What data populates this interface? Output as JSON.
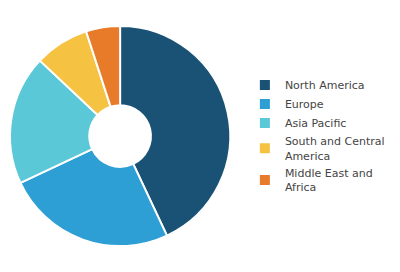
{
  "chart_data": {
    "type": "donut",
    "categories": [
      "North America",
      "Europe",
      "Asia Pacific",
      "South and Central\nAmerica",
      "Middle East and\nAfrica"
    ],
    "values": [
      43,
      25,
      19,
      8,
      5
    ],
    "colors": [
      "#1a5276",
      "#2e9fd4",
      "#5bc8d8",
      "#f5c242",
      "#e87b2a"
    ],
    "legend": "right",
    "data_labels": false
  }
}
